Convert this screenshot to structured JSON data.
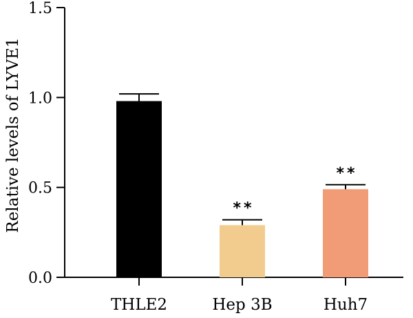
{
  "chart_data": {
    "type": "bar",
    "ylabel": "Relative levels of LYVE1",
    "xlabel": "",
    "ylim": [
      0,
      1.5
    ],
    "yticks": [
      0.0,
      0.5,
      1.0,
      1.5
    ],
    "ytick_labels": [
      "0.0",
      "0.5",
      "1.0",
      "1.5"
    ],
    "categories": [
      "THLE2",
      "Hep 3B",
      "Huh7"
    ],
    "values": [
      0.98,
      0.29,
      0.49
    ],
    "errors": [
      0.04,
      0.03,
      0.025
    ],
    "significance": [
      "",
      "**",
      "**"
    ],
    "colors": [
      "#000000",
      "#f2cc8f",
      "#f29b77"
    ],
    "grid": false,
    "legend": "none"
  }
}
